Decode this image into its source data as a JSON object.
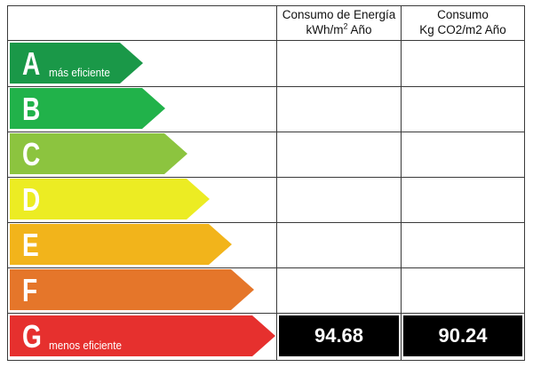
{
  "header": {
    "energy_line1": "Consumo de Energía",
    "energy_line2": "kWh/m",
    "energy_sup": "2",
    "energy_line2b": " Año",
    "co2_line1": "Consumo",
    "co2_line2": "Kg CO2/m2 Año"
  },
  "ratings": [
    {
      "letter": "A",
      "caption": "más eficiente",
      "color": "#1a9848"
    },
    {
      "letter": "B",
      "caption": "",
      "color": "#21b24a"
    },
    {
      "letter": "C",
      "caption": "",
      "color": "#8cc43f"
    },
    {
      "letter": "D",
      "caption": "",
      "color": "#ecec23"
    },
    {
      "letter": "E",
      "caption": "",
      "color": "#f2b41b"
    },
    {
      "letter": "F",
      "caption": "",
      "color": "#e5762a"
    },
    {
      "letter": "G",
      "caption": "menos eficiente",
      "color": "#e6302e"
    }
  ],
  "result": {
    "rating": "G",
    "energy_value": "94.68",
    "co2_value": "90.24"
  }
}
